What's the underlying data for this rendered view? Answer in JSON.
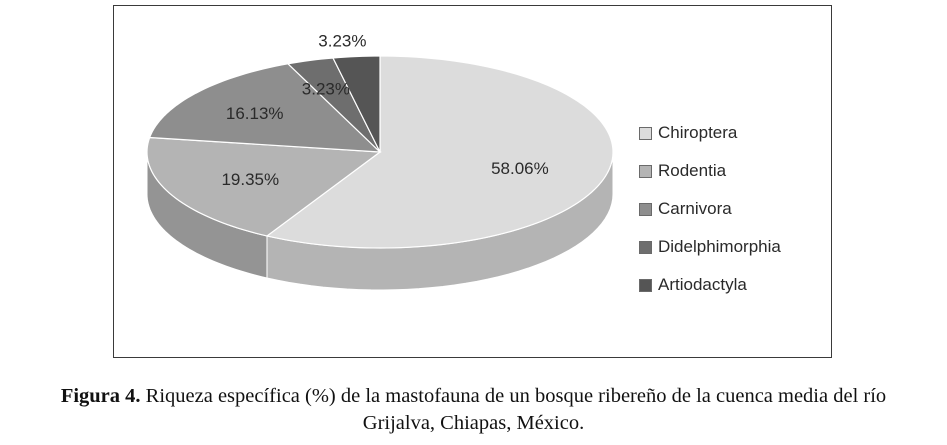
{
  "chart_data": {
    "type": "pie",
    "title": "",
    "categories": [
      "Chiroptera",
      "Rodentia",
      "Carnivora",
      "Didelphimorphia",
      "Artiodactyla"
    ],
    "values": [
      58.06,
      19.35,
      16.13,
      3.23,
      3.23
    ],
    "data_labels": [
      "58.06%",
      "19.35%",
      "16.13%",
      "3.23%",
      "3.23%"
    ],
    "colors": [
      "#dcdcdc",
      "#b4b4b4",
      "#8e8e8e",
      "#6e6e6e",
      "#555555"
    ],
    "legend_position": "right",
    "style": "3d"
  },
  "caption": {
    "label": "Figura 4.",
    "line1_text": " Riqueza específica (%) de la mastofauna de un bosque ribereño de la cuenca media del río",
    "line2_text": "Grijalva, Chiapas, México."
  }
}
